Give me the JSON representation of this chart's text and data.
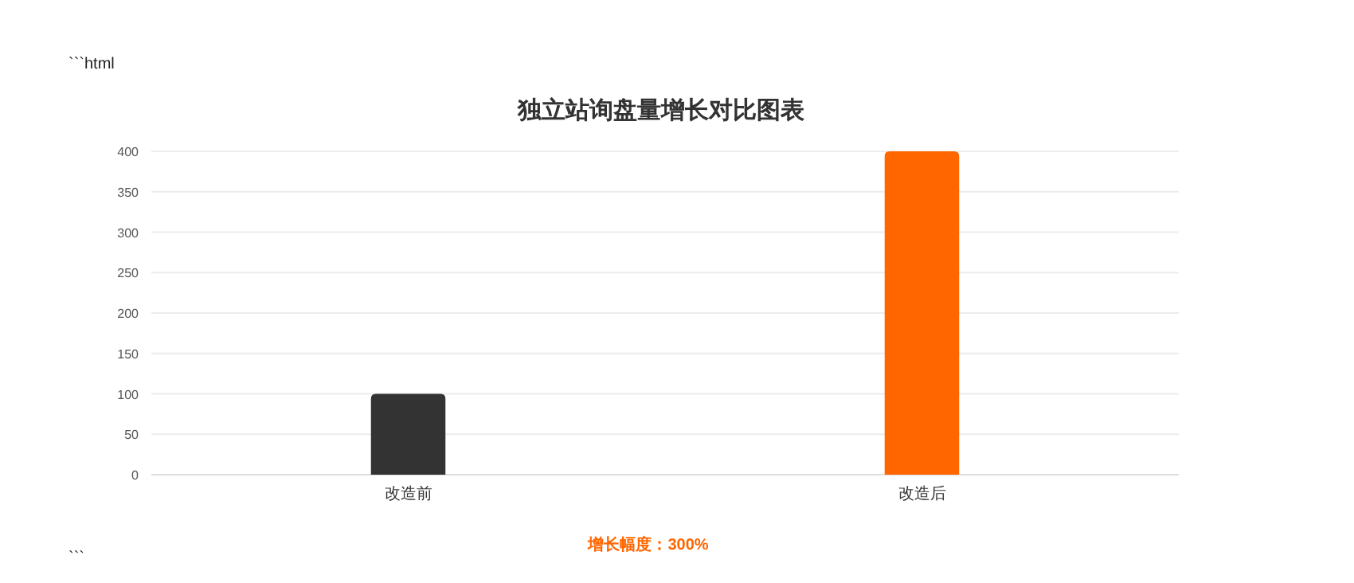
{
  "chart_data": {
    "type": "bar",
    "title": "独立站询盘量增长对比图表",
    "categories": [
      "改造前",
      "改造后"
    ],
    "values": [
      100,
      400
    ],
    "colors": [
      "#333333",
      "#ff6600"
    ],
    "ylim": [
      0,
      400
    ],
    "yticks": [
      0,
      50,
      100,
      150,
      200,
      250,
      300,
      350,
      400
    ],
    "grid": "y",
    "annotations": [
      "```html",
      "增长幅度：300%",
      "```"
    ]
  }
}
